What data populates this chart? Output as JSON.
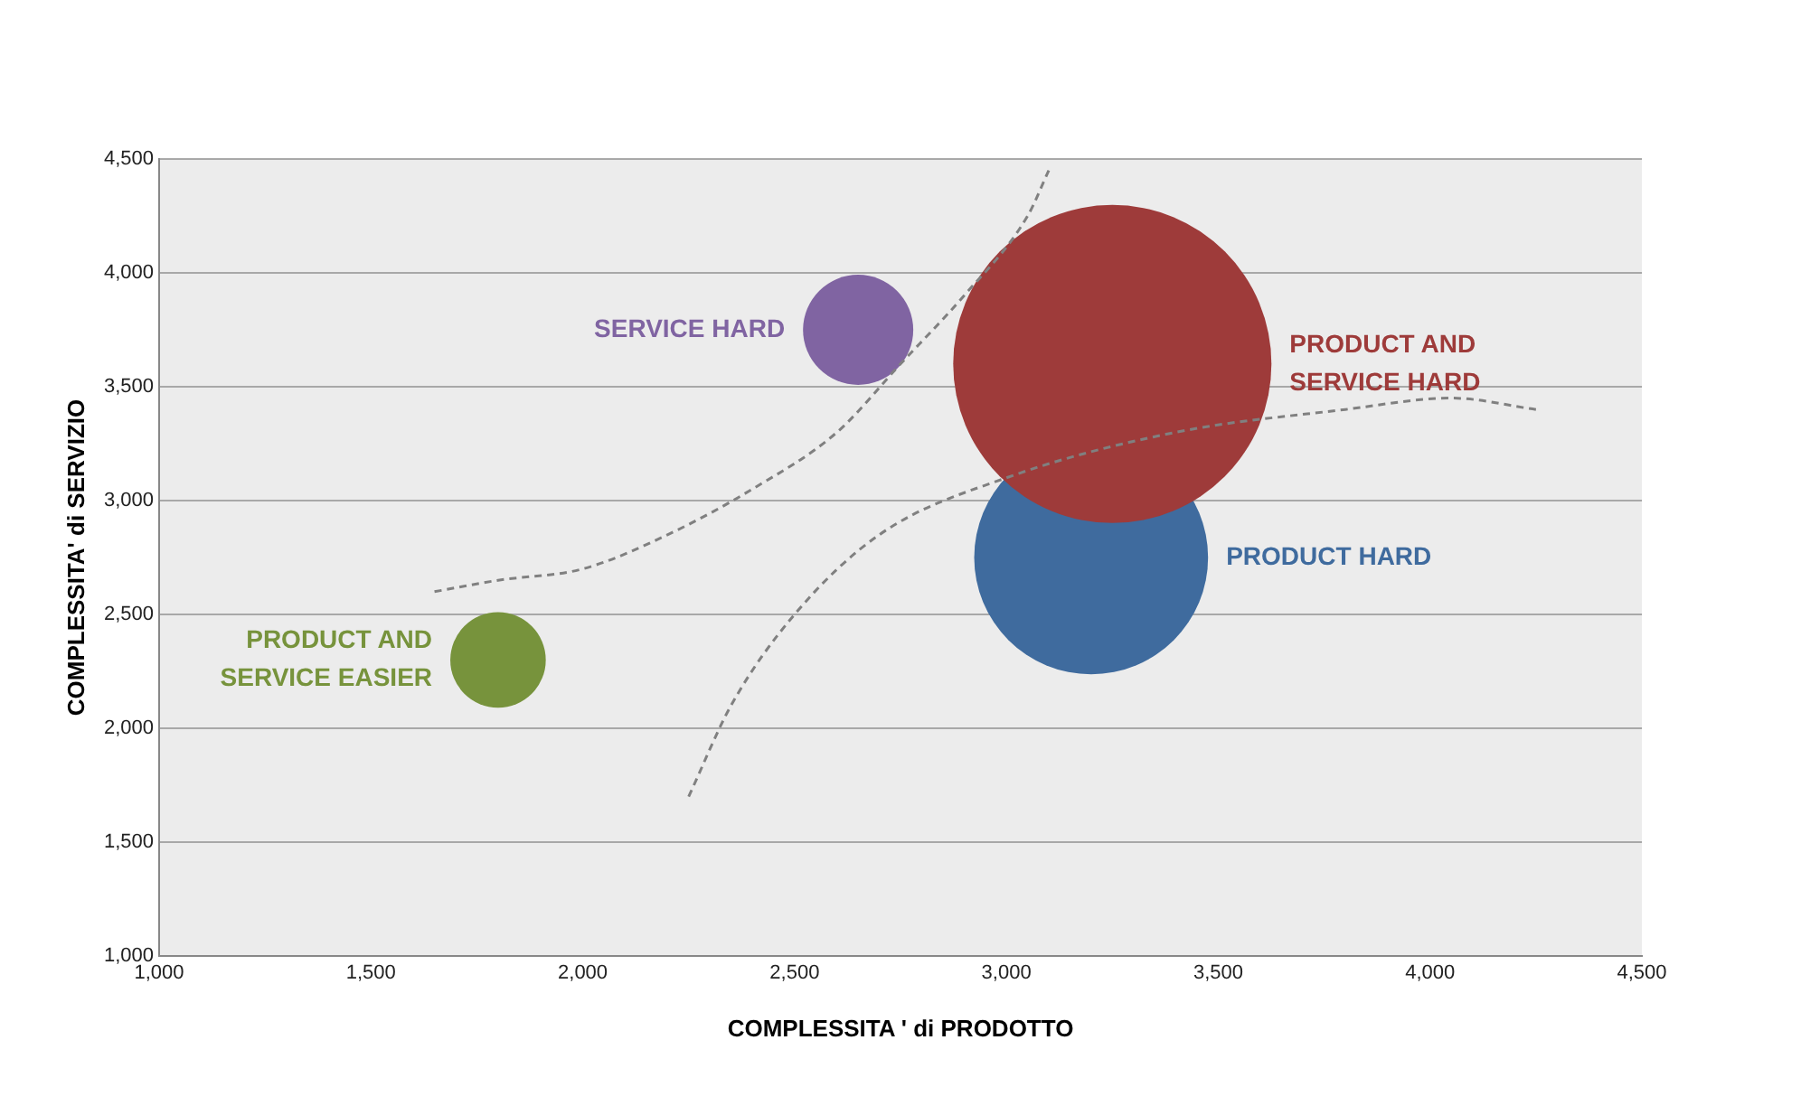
{
  "chart_data": {
    "type": "bubble",
    "xlabel": "COMPLESSITA ' di PRODOTTO",
    "ylabel": "COMPLESSITA' di SERVIZIO",
    "xlim": [
      1000,
      4500
    ],
    "xticks": [
      {
        "value": 1000,
        "label": "1,000"
      },
      {
        "value": 1500,
        "label": "1,500"
      },
      {
        "value": 2000,
        "label": "2,000"
      },
      {
        "value": 2500,
        "label": "2,500"
      },
      {
        "value": 3000,
        "label": "3,000"
      },
      {
        "value": 3500,
        "label": "3,500"
      },
      {
        "value": 4000,
        "label": "4,000"
      },
      {
        "value": 4500,
        "label": "4,500"
      }
    ],
    "ylim": [
      1000,
      4500
    ],
    "yticks": [
      {
        "value": 1000,
        "label": "1,000"
      },
      {
        "value": 1500,
        "label": "1,500"
      },
      {
        "value": 2000,
        "label": "2,000"
      },
      {
        "value": 2500,
        "label": "2,500"
      },
      {
        "value": 3000,
        "label": "3,000"
      },
      {
        "value": 3500,
        "label": "3,500"
      },
      {
        "value": 4000,
        "label": "4,000"
      },
      {
        "value": 4500,
        "label": "4,500"
      }
    ],
    "grid": "y",
    "legend": false,
    "series": [
      {
        "type": "line",
        "color": "#808080",
        "line_style": "dashed",
        "marker": "none",
        "x": [
          1650,
          1800,
          2000,
          2200,
          2400,
          2600,
          2750,
          2900,
          3050,
          3100
        ],
        "values": [
          2600,
          2650,
          2700,
          2850,
          3050,
          3300,
          3600,
          3900,
          4250,
          4450
        ]
      },
      {
        "type": "line",
        "color": "#808080",
        "line_style": "dashed",
        "marker": "none",
        "x": [
          2250,
          2350,
          2500,
          2700,
          3000,
          3400,
          3800,
          4050,
          4250
        ],
        "values": [
          1700,
          2100,
          2500,
          2850,
          3100,
          3300,
          3400,
          3450,
          3400
        ]
      },
      {
        "name": "PRODUCT AND SERVICE HARD",
        "color": "#9e3b3a",
        "x": [
          3250
        ],
        "values": [
          3600
        ],
        "sizes": [
          1
        ]
      },
      {
        "name": "PRODUCT HARD",
        "color": "#3f6b9e",
        "x": [
          3200
        ],
        "values": [
          2750
        ],
        "sizes": [
          0.54
        ]
      },
      {
        "name": "SERVICE HARD",
        "color": "#8064a2",
        "x": [
          2650
        ],
        "values": [
          3750
        ],
        "sizes": [
          0.12
        ]
      },
      {
        "name": "PRODUCT AND SERVICE EASIER",
        "color": "#77933c",
        "x": [
          1800
        ],
        "values": [
          2300
        ],
        "sizes": [
          0.09
        ]
      }
    ]
  }
}
